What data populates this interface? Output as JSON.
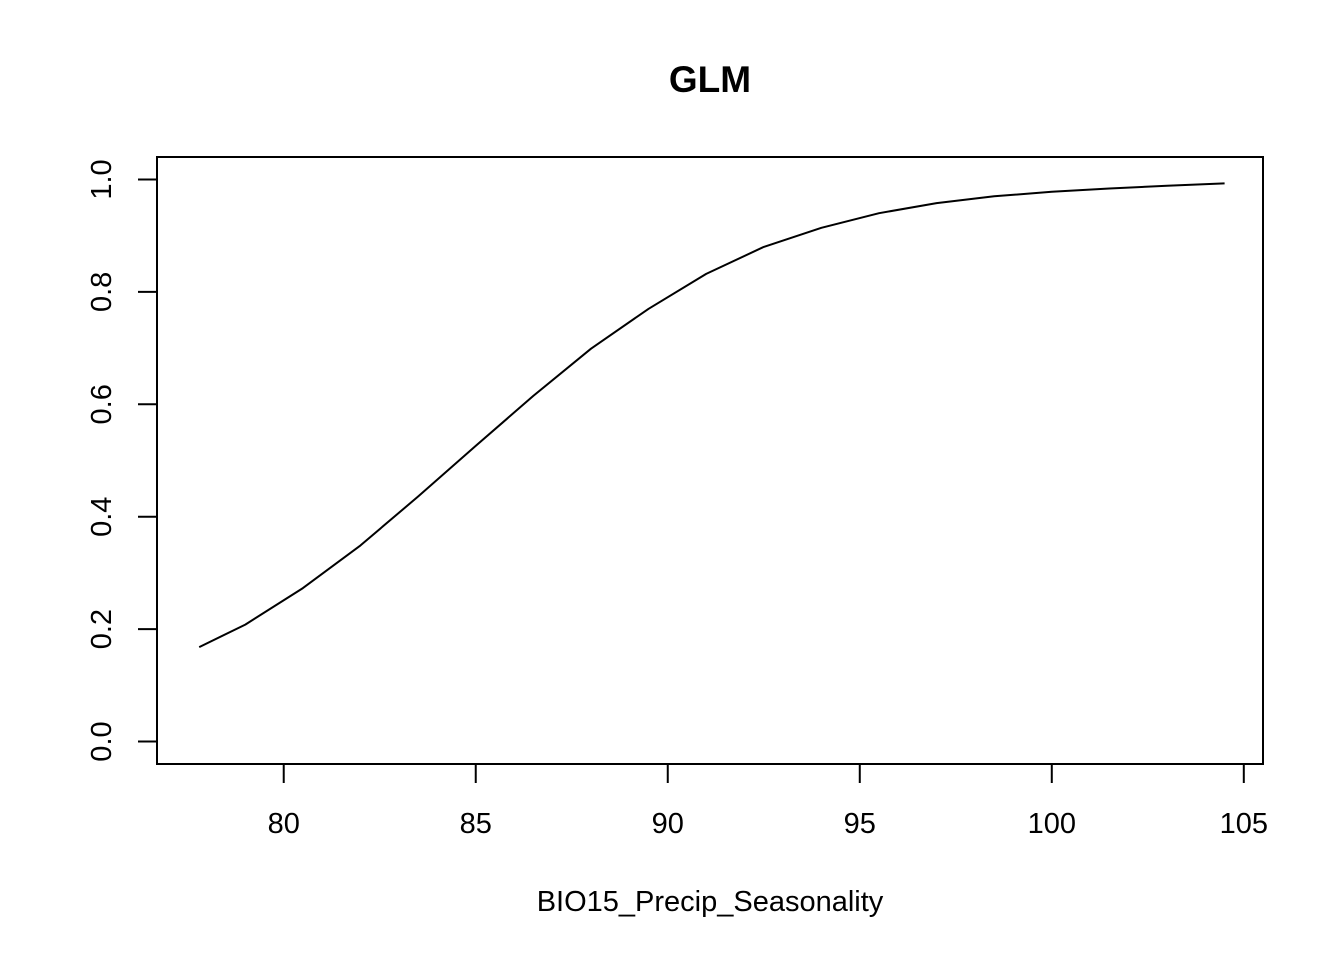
{
  "chart_data": {
    "type": "line",
    "title": "GLM",
    "xlabel": "BIO15_Precip_Seasonality",
    "ylabel": "",
    "xlim": [
      76.7,
      105.5
    ],
    "ylim": [
      -0.04,
      1.04
    ],
    "x_ticks": [
      80,
      85,
      90,
      95,
      100,
      105
    ],
    "x_tick_labels": [
      "80",
      "85",
      "90",
      "95",
      "100",
      "105"
    ],
    "y_ticks": [
      0.0,
      0.2,
      0.4,
      0.6,
      0.8,
      1.0
    ],
    "y_tick_labels": [
      "0.0",
      "0.2",
      "0.4",
      "0.6",
      "0.8",
      "1.0"
    ],
    "grid": false,
    "legend": "none",
    "line_color": "#000000",
    "series": [
      {
        "x": [
          77.8,
          79.0,
          80.5,
          82.0,
          83.5,
          85.0,
          86.5,
          88.0,
          89.5,
          91.0,
          92.5,
          94.0,
          95.5,
          97.0,
          98.5,
          100.0,
          101.5,
          103.0,
          104.5
        ],
        "values": [
          0.168,
          0.208,
          0.273,
          0.349,
          0.436,
          0.526,
          0.615,
          0.699,
          0.77,
          0.832,
          0.88,
          0.914,
          0.94,
          0.958,
          0.97,
          0.978,
          0.984,
          0.989,
          0.993
        ]
      }
    ]
  }
}
